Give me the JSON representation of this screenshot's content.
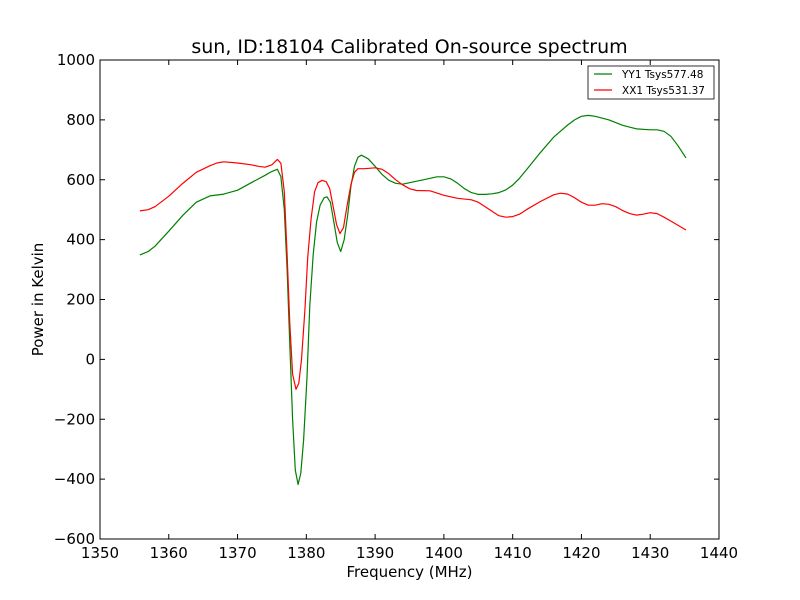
{
  "chart_data": {
    "type": "line",
    "title": "sun, ID:18104 Calibrated On-source spectrum",
    "xlabel": "Frequency (MHz)",
    "ylabel": "Power in Kelvin",
    "xlim": [
      1350,
      1440
    ],
    "ylim": [
      -600,
      1000
    ],
    "xticks": [
      1350,
      1360,
      1370,
      1380,
      1390,
      1400,
      1410,
      1420,
      1430,
      1440
    ],
    "yticks": [
      -600,
      -400,
      -200,
      0,
      200,
      400,
      600,
      800,
      1000
    ],
    "xtick_labels": [
      "1350",
      "1360",
      "1370",
      "1380",
      "1390",
      "1400",
      "1410",
      "1420",
      "1430",
      "1440"
    ],
    "ytick_labels": [
      "−600",
      "−400",
      "−200",
      "0",
      "200",
      "400",
      "600",
      "800",
      "1000"
    ],
    "grid": false,
    "legend_position": "top-right",
    "series": [
      {
        "name": "YY1 Tsys577.48",
        "color": "#008000",
        "points": [
          [
            1355.8,
            349
          ],
          [
            1357,
            360
          ],
          [
            1358,
            378
          ],
          [
            1360,
            428
          ],
          [
            1362,
            480
          ],
          [
            1364,
            525
          ],
          [
            1366,
            546
          ],
          [
            1368,
            552
          ],
          [
            1370,
            565
          ],
          [
            1372,
            590
          ],
          [
            1374,
            615
          ],
          [
            1375,
            628
          ],
          [
            1375.8,
            635
          ],
          [
            1376.3,
            610
          ],
          [
            1376.8,
            500
          ],
          [
            1377.2,
            300
          ],
          [
            1377.6,
            50
          ],
          [
            1378,
            -200
          ],
          [
            1378.4,
            -370
          ],
          [
            1378.8,
            -418
          ],
          [
            1379.2,
            -380
          ],
          [
            1379.6,
            -270
          ],
          [
            1380.1,
            -60
          ],
          [
            1380.5,
            180
          ],
          [
            1381,
            350
          ],
          [
            1381.5,
            460
          ],
          [
            1382,
            515
          ],
          [
            1382.6,
            540
          ],
          [
            1383,
            543
          ],
          [
            1383.5,
            525
          ],
          [
            1384,
            460
          ],
          [
            1384.5,
            390
          ],
          [
            1385,
            360
          ],
          [
            1385.5,
            400
          ],
          [
            1386,
            480
          ],
          [
            1386.5,
            580
          ],
          [
            1387,
            645
          ],
          [
            1387.5,
            675
          ],
          [
            1388,
            682
          ],
          [
            1389,
            670
          ],
          [
            1390,
            645
          ],
          [
            1391,
            618
          ],
          [
            1392,
            598
          ],
          [
            1393,
            588
          ],
          [
            1394,
            585
          ],
          [
            1395,
            590
          ],
          [
            1397,
            600
          ],
          [
            1399,
            610
          ],
          [
            1400,
            610
          ],
          [
            1401,
            603
          ],
          [
            1402,
            588
          ],
          [
            1403,
            570
          ],
          [
            1404,
            557
          ],
          [
            1405,
            551
          ],
          [
            1406,
            551
          ],
          [
            1407,
            553
          ],
          [
            1408,
            557
          ],
          [
            1409,
            566
          ],
          [
            1410,
            582
          ],
          [
            1411,
            605
          ],
          [
            1412,
            633
          ],
          [
            1414,
            690
          ],
          [
            1416,
            743
          ],
          [
            1418,
            783
          ],
          [
            1419,
            800
          ],
          [
            1420,
            812
          ],
          [
            1421,
            815
          ],
          [
            1422,
            812
          ],
          [
            1424,
            800
          ],
          [
            1426,
            782
          ],
          [
            1428,
            770
          ],
          [
            1430,
            767
          ],
          [
            1431,
            767
          ],
          [
            1432,
            762
          ],
          [
            1433,
            745
          ],
          [
            1434,
            715
          ],
          [
            1435.2,
            673
          ]
        ]
      },
      {
        "name": "XX1 Tsys531.37",
        "color": "#ff0000",
        "points": [
          [
            1355.8,
            496
          ],
          [
            1357,
            500
          ],
          [
            1358,
            510
          ],
          [
            1360,
            545
          ],
          [
            1362,
            587
          ],
          [
            1364,
            625
          ],
          [
            1366,
            647
          ],
          [
            1367,
            656
          ],
          [
            1368,
            660
          ],
          [
            1370,
            656
          ],
          [
            1372,
            650
          ],
          [
            1373,
            645
          ],
          [
            1374,
            642
          ],
          [
            1375,
            650
          ],
          [
            1375.8,
            668
          ],
          [
            1376.3,
            655
          ],
          [
            1376.8,
            560
          ],
          [
            1377.2,
            350
          ],
          [
            1377.6,
            120
          ],
          [
            1378,
            -50
          ],
          [
            1378.5,
            -100
          ],
          [
            1378.9,
            -80
          ],
          [
            1379.3,
            0
          ],
          [
            1379.8,
            170
          ],
          [
            1380.2,
            340
          ],
          [
            1380.7,
            470
          ],
          [
            1381.2,
            560
          ],
          [
            1381.7,
            590
          ],
          [
            1382.3,
            598
          ],
          [
            1382.9,
            593
          ],
          [
            1383.4,
            570
          ],
          [
            1383.9,
            510
          ],
          [
            1384.4,
            450
          ],
          [
            1384.9,
            420
          ],
          [
            1385.4,
            440
          ],
          [
            1385.9,
            510
          ],
          [
            1386.5,
            585
          ],
          [
            1387,
            625
          ],
          [
            1387.5,
            637
          ],
          [
            1388.5,
            637
          ],
          [
            1390,
            640
          ],
          [
            1391,
            635
          ],
          [
            1392,
            620
          ],
          [
            1393,
            600
          ],
          [
            1394,
            583
          ],
          [
            1395,
            570
          ],
          [
            1396,
            564
          ],
          [
            1398,
            563
          ],
          [
            1400,
            548
          ],
          [
            1402,
            538
          ],
          [
            1404,
            533
          ],
          [
            1405,
            525
          ],
          [
            1406,
            510
          ],
          [
            1407,
            495
          ],
          [
            1408,
            480
          ],
          [
            1409,
            475
          ],
          [
            1410,
            477
          ],
          [
            1411,
            485
          ],
          [
            1412,
            500
          ],
          [
            1414,
            527
          ],
          [
            1416,
            550
          ],
          [
            1417,
            555
          ],
          [
            1418,
            552
          ],
          [
            1419,
            540
          ],
          [
            1420,
            525
          ],
          [
            1421,
            515
          ],
          [
            1422,
            515
          ],
          [
            1423,
            520
          ],
          [
            1424,
            518
          ],
          [
            1425,
            510
          ],
          [
            1426,
            497
          ],
          [
            1427,
            487
          ],
          [
            1428,
            482
          ],
          [
            1429,
            485
          ],
          [
            1430,
            490
          ],
          [
            1431,
            487
          ],
          [
            1432,
            475
          ],
          [
            1433,
            462
          ],
          [
            1435.2,
            432
          ]
        ]
      }
    ]
  }
}
